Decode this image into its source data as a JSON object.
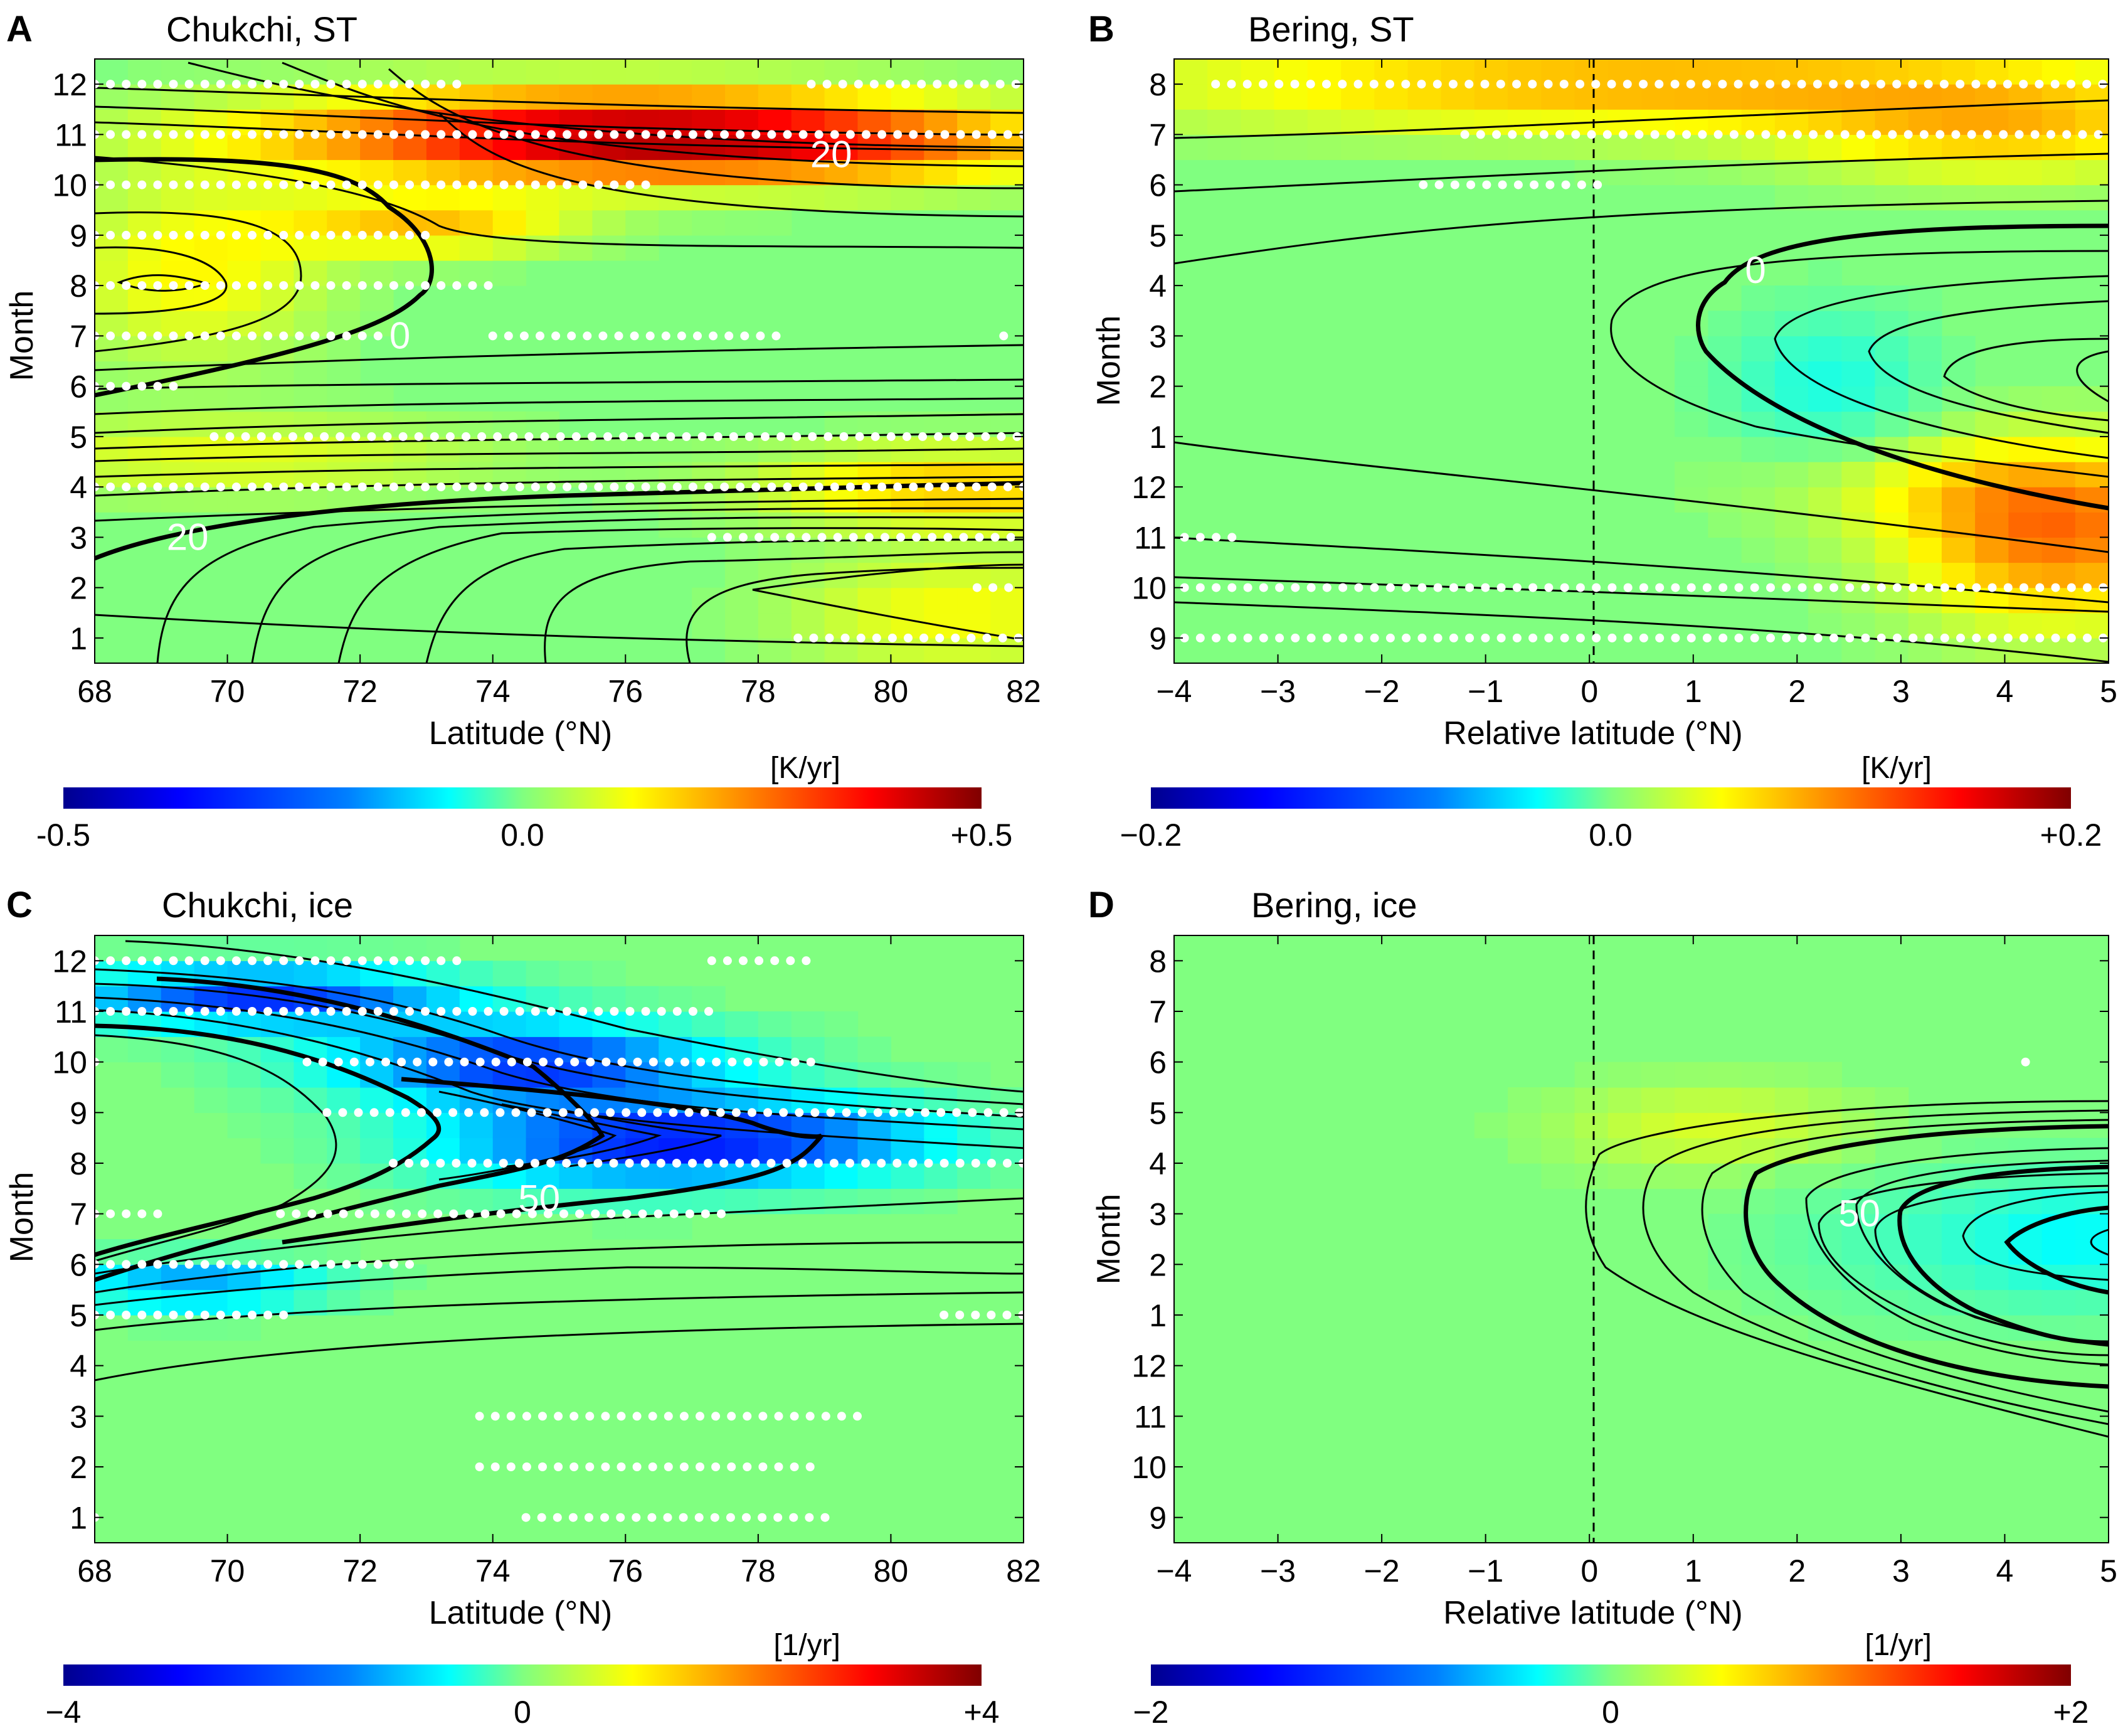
{
  "figure": "four-panel heatmap figure",
  "colormap": [
    "#00008f",
    "#0000ff",
    "#0080ff",
    "#00ffff",
    "#80ff80",
    "#ffff00",
    "#ff8000",
    "#ff0000",
    "#800000"
  ],
  "chart_data": [
    {
      "type": "heatmap",
      "letter": "A",
      "title": "Chukchi, ST",
      "xlabel": "Latitude (°N)",
      "ylabel": "Month",
      "xlim": [
        68,
        82
      ],
      "xticks": [
        "68",
        "70",
        "72",
        "74",
        "76",
        "78",
        "80",
        "82"
      ],
      "xtick_values": [
        68,
        70,
        72,
        74,
        76,
        78,
        80,
        82
      ],
      "ymonths": [
        "1",
        "2",
        "3",
        "4",
        "5",
        "6",
        "7",
        "8",
        "9",
        "10",
        "11",
        "12"
      ],
      "colorbar": {
        "unit": "[K/yr]",
        "min": -0.5,
        "max": 0.5,
        "labels": [
          "-0.5",
          "0.0",
          "+0.5"
        ]
      },
      "contour_labels": [
        {
          "text": "20",
          "lon": 79.1,
          "month": 10.6
        },
        {
          "text": "0",
          "lon": 72.6,
          "month": 7.0
        },
        {
          "text": "20",
          "lon": 69.4,
          "month": 3.0
        }
      ],
      "trend_regions": [
        {
          "lon_center": 75.5,
          "month_center": 11.0,
          "lon_spread": 5.0,
          "month_spread": 0.9,
          "value": 0.4
        },
        {
          "lon_center": 79.5,
          "month_center": 10.8,
          "lon_spread": 4.0,
          "month_spread": 0.8,
          "value": 0.15
        },
        {
          "lon_center": 73.0,
          "month_center": 9.2,
          "lon_spread": 2.2,
          "month_spread": 0.6,
          "value": 0.18
        },
        {
          "lon_center": 69.5,
          "month_center": 8.3,
          "lon_spread": 2.0,
          "month_spread": 1.8,
          "value": 0.13
        },
        {
          "lon_center": 70.0,
          "month_center": 4.6,
          "lon_spread": 4.0,
          "month_spread": 0.8,
          "value": 0.1
        },
        {
          "lon_center": 81.0,
          "month_center": 4.0,
          "lon_spread": 3.0,
          "month_spread": 0.8,
          "value": 0.18
        },
        {
          "lon_center": 81.0,
          "month_center": 1.5,
          "lon_spread": 2.5,
          "month_spread": 1.2,
          "value": 0.12
        }
      ],
      "stippling_rows": [
        {
          "month": 12,
          "from": 68.0,
          "to": 73.5
        },
        {
          "month": 12,
          "from": 78.8,
          "to": 82.0
        },
        {
          "month": 11,
          "from": 68.0,
          "to": 82.0
        },
        {
          "month": 10,
          "from": 68.0,
          "to": 76.5
        },
        {
          "month": 9,
          "from": 68.0,
          "to": 73.0
        },
        {
          "month": 8,
          "from": 68.0,
          "to": 74.0
        },
        {
          "month": 7,
          "from": 68.0,
          "to": 72.3
        },
        {
          "month": 7,
          "from": 74.0,
          "to": 78.3
        },
        {
          "month": 7,
          "from": 81.7,
          "to": 81.7
        },
        {
          "month": 6,
          "from": 68.0,
          "to": 69.3
        },
        {
          "month": 5,
          "from": 69.8,
          "to": 82.0
        },
        {
          "month": 4,
          "from": 68.0,
          "to": 82.0
        },
        {
          "month": 3,
          "from": 77.3,
          "to": 82.0
        },
        {
          "month": 2,
          "from": 81.3,
          "to": 82.0
        },
        {
          "month": 1,
          "from": 78.6,
          "to": 82.0
        }
      ]
    },
    {
      "type": "heatmap",
      "letter": "B",
      "title": "Bering, ST",
      "xlabel": "Relative latitude (°N)",
      "ylabel": "Month",
      "xlim": [
        -4,
        5
      ],
      "xticks": [
        "−4",
        "−3",
        "−2",
        "−1",
        "0",
        "1",
        "2",
        "3",
        "4",
        "5"
      ],
      "xtick_values": [
        -4,
        -3,
        -2,
        -1,
        0,
        1,
        2,
        3,
        4,
        5
      ],
      "ymonths": [
        "9",
        "10",
        "11",
        "12",
        "1",
        "2",
        "3",
        "4",
        "5",
        "6",
        "7",
        "8"
      ],
      "zero_line": 0,
      "colorbar": {
        "unit": "[K/yr]",
        "min": -0.2,
        "max": 0.2,
        "labels": [
          "−0.2",
          "0.0",
          "+0.2"
        ]
      },
      "contour_labels": [
        {
          "text": "0",
          "lon": 1.6,
          "row": 8.3
        }
      ],
      "trend_regions": [
        {
          "lon_center": 0.5,
          "row_center": 12.0,
          "lon_spread": 5.0,
          "row_spread": 1.0,
          "value": 0.08
        },
        {
          "lon_center": 4.0,
          "row_center": 11.0,
          "lon_spread": 2.0,
          "row_spread": 1.0,
          "value": 0.06
        },
        {
          "lon_center": 4.5,
          "row_center": 3.0,
          "lon_spread": 1.5,
          "row_spread": 1.8,
          "value": 0.1
        },
        {
          "lon_center": 2.3,
          "row_center": 6.0,
          "lon_spread": 1.0,
          "row_spread": 1.5,
          "value": -0.04
        },
        {
          "lon_center": 3.5,
          "row_center": 4.0,
          "lon_spread": 2.0,
          "row_spread": 1.0,
          "value": 0.03
        }
      ],
      "stippling_rows": [
        {
          "row": 12,
          "from": -3.6,
          "to": 5.0
        },
        {
          "row": 11,
          "from": -1.2,
          "to": 5.0
        },
        {
          "row": 10,
          "from": -1.6,
          "to": 0.1
        },
        {
          "row": 3,
          "from": -3.9,
          "to": -3.3
        },
        {
          "row": 2,
          "from": -3.9,
          "to": 5.0
        },
        {
          "row": 1,
          "from": -3.9,
          "to": 5.0
        }
      ]
    },
    {
      "type": "heatmap",
      "letter": "C",
      "title": "Chukchi, ice",
      "xlabel": "Latitude (°N)",
      "ylabel": "Month",
      "xlim": [
        68,
        82
      ],
      "xticks": [
        "68",
        "70",
        "72",
        "74",
        "76",
        "78",
        "80",
        "82"
      ],
      "xtick_values": [
        68,
        70,
        72,
        74,
        76,
        78,
        80,
        82
      ],
      "ymonths": [
        "1",
        "2",
        "3",
        "4",
        "5",
        "6",
        "7",
        "8",
        "9",
        "10",
        "11",
        "12"
      ],
      "colorbar": {
        "unit": "[1/yr]",
        "min": -4,
        "max": 4,
        "labels": [
          "−4",
          "0",
          "+4"
        ]
      },
      "contour_labels": [
        {
          "text": "50",
          "lon": 74.7,
          "month": 7.3
        }
      ],
      "trend_regions": [
        {
          "lon_center": 70.5,
          "month_center": 11.3,
          "lon_spread": 3.0,
          "month_spread": 0.6,
          "value": -2.6
        },
        {
          "lon_center": 74.5,
          "month_center": 10.0,
          "lon_spread": 3.0,
          "month_spread": 0.8,
          "value": -2.6
        },
        {
          "lon_center": 76.0,
          "month_center": 8.4,
          "lon_spread": 3.0,
          "month_spread": 0.9,
          "value": -2.4
        },
        {
          "lon_center": 79.0,
          "month_center": 8.5,
          "lon_spread": 2.5,
          "month_spread": 0.8,
          "value": -1.4
        },
        {
          "lon_center": 69.5,
          "month_center": 5.6,
          "lon_spread": 2.0,
          "month_spread": 0.5,
          "value": -1.8
        }
      ],
      "stippling_rows": [
        {
          "month": 12,
          "from": 68.0,
          "to": 73.5
        },
        {
          "month": 12,
          "from": 77.3,
          "to": 78.8
        },
        {
          "month": 11,
          "from": 68.0,
          "to": 77.4
        },
        {
          "month": 10,
          "from": 68.0,
          "to": 68.0
        },
        {
          "month": 10,
          "from": 71.2,
          "to": 78.8
        },
        {
          "month": 9,
          "from": 71.5,
          "to": 82.0
        },
        {
          "month": 8,
          "from": 72.5,
          "to": 82.0
        },
        {
          "month": 7,
          "from": 68.0,
          "to": 69.0
        },
        {
          "month": 7,
          "from": 70.8,
          "to": 77.5
        },
        {
          "month": 6,
          "from": 68.0,
          "to": 72.8
        },
        {
          "month": 5,
          "from": 68.0,
          "to": 71.0
        },
        {
          "month": 5,
          "from": 80.8,
          "to": 82.0
        },
        {
          "month": 3,
          "from": 73.8,
          "to": 79.5
        },
        {
          "month": 2,
          "from": 73.8,
          "to": 79.0
        },
        {
          "month": 1,
          "from": 68.0,
          "to": 68.0
        },
        {
          "month": 1,
          "from": 74.5,
          "to": 79.2
        }
      ]
    },
    {
      "type": "heatmap",
      "letter": "D",
      "title": "Bering, ice",
      "xlabel": "Relative latitude (°N)",
      "ylabel": "Month",
      "xlim": [
        -4,
        5
      ],
      "xticks": [
        "−4",
        "−3",
        "−2",
        "−1",
        "0",
        "1",
        "2",
        "3",
        "4",
        "5"
      ],
      "xtick_values": [
        -4,
        -3,
        -2,
        -1,
        0,
        1,
        2,
        3,
        4,
        5
      ],
      "ymonths": [
        "9",
        "10",
        "11",
        "12",
        "1",
        "2",
        "3",
        "4",
        "5",
        "6",
        "7",
        "8"
      ],
      "zero_line": 0,
      "colorbar": {
        "unit": "[1/yr]",
        "min": -2,
        "max": 2,
        "labels": [
          "−2",
          "0",
          "+2"
        ]
      },
      "contour_labels": [
        {
          "text": "50",
          "lon": 2.6,
          "row": 7.0
        }
      ],
      "trend_regions": [
        {
          "lon_center": 1.2,
          "row_center": 8.7,
          "lon_spread": 1.5,
          "row_spread": 0.9,
          "value": 0.35
        },
        {
          "lon_center": 3.5,
          "row_center": 6.5,
          "lon_spread": 1.8,
          "row_spread": 1.5,
          "value": -0.25
        },
        {
          "lon_center": 4.8,
          "row_center": 6.5,
          "lon_spread": 1.0,
          "row_spread": 1.2,
          "value": -0.35
        }
      ],
      "stippling_rows": [
        {
          "row": 10,
          "from": 4.2,
          "to": 4.2
        }
      ]
    }
  ]
}
